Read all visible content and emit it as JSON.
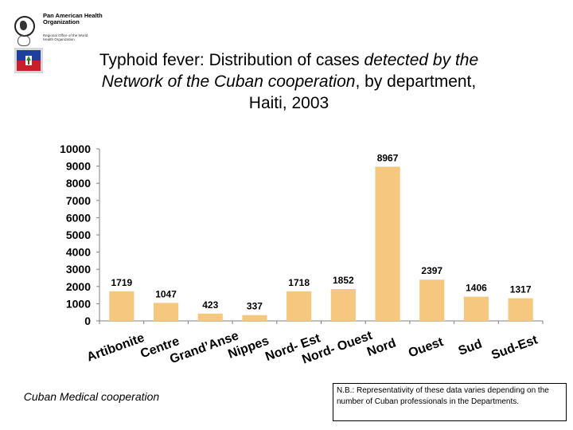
{
  "header": {
    "org_name": "Pan American Health Organization",
    "org_sub": "Regional Office of the World Health Organization"
  },
  "title": {
    "line1_normal": "Typhoid fever: Distribution of cases ",
    "line1_italic": "detected by the",
    "line2_italic": "Network of the Cuban cooperation",
    "line2_normal": ", by department,",
    "line3": "Haiti, 2003"
  },
  "colors": {
    "bar": "#f6c87f",
    "axis": "#808080",
    "text": "#000000"
  },
  "chart_data": {
    "type": "bar",
    "title": "Typhoid fever: Distribution of cases detected by the Network of the Cuban cooperation, by department, Haiti, 2003",
    "categories": [
      "Artibonite",
      "Centre",
      "Grand'Anse",
      "Nippes",
      "Nord-Est",
      "Nord-Ouest",
      "Nord",
      "Ouest",
      "Sud",
      "Sud-Est"
    ],
    "category_labels": [
      "Artibonite",
      "Centre",
      "Grand’Anse",
      "Nippes",
      "Nord- Est",
      "Nord- Ouest",
      "Nord",
      "Ouest",
      "Sud",
      "Sud-Est"
    ],
    "values": [
      1719,
      1047,
      423,
      337,
      1718,
      1852,
      8967,
      2397,
      1406,
      1317
    ],
    "ylim": [
      0,
      10000
    ],
    "yticks": [
      0,
      1000,
      2000,
      3000,
      4000,
      5000,
      6000,
      7000,
      8000,
      9000,
      10000
    ],
    "xlabel": "",
    "ylabel": "",
    "grid": false,
    "legend": "none"
  },
  "footnotes": {
    "left": "Cuban Medical cooperation",
    "right": "N.B.: Representativity of these data varies depending on the number of Cuban professionals in the Departments."
  }
}
